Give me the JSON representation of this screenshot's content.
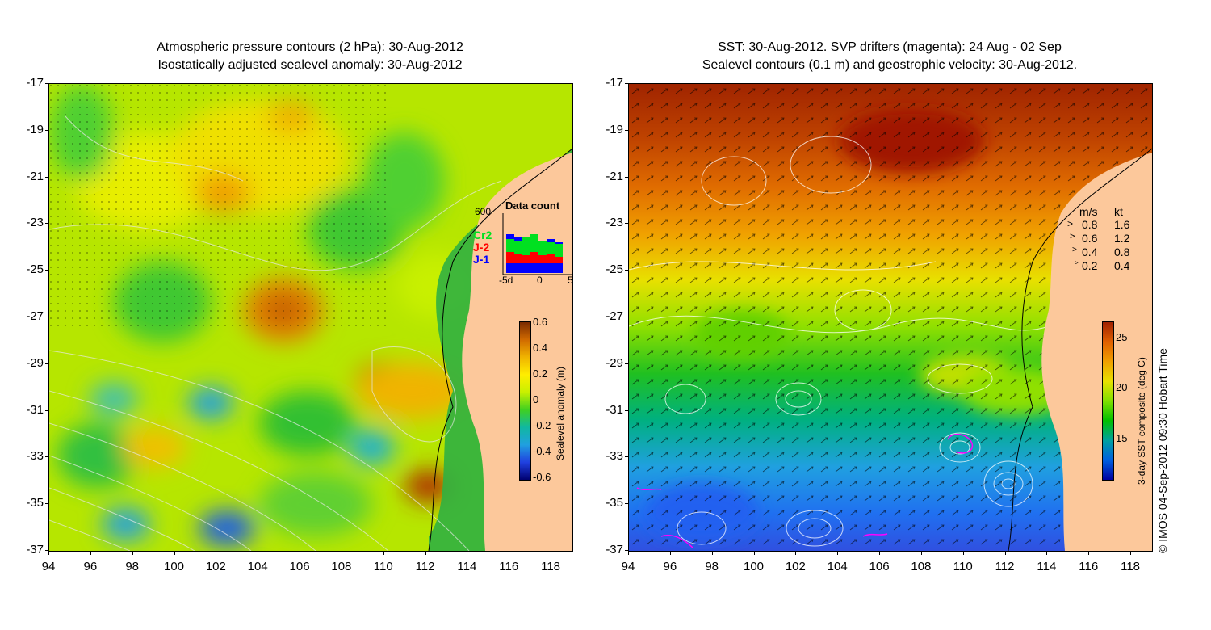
{
  "left_panel": {
    "title_line1": "Atmospheric pressure contours (2 hPa): 30-Aug-2012",
    "title_line2": "Isostatically adjusted sealevel anomaly: 30-Aug-2012",
    "colorbar": {
      "label": "Sealevel anomaly (m)",
      "ticks": [
        "0.6",
        "0.4",
        "0.2",
        "0",
        "-0.2",
        "-0.4",
        "-0.6"
      ],
      "colors": [
        "#7a2a00",
        "#d06a00",
        "#f0b400",
        "#ffee00",
        "#c8f000",
        "#40d020",
        "#10b8a0",
        "#20a0e0",
        "#2040e0",
        "#000070"
      ]
    },
    "data_count": {
      "title": "Data count",
      "max_label": "600",
      "satellites": [
        {
          "name": "Cr2",
          "color": "#00e020"
        },
        {
          "name": "J-2",
          "color": "#ff0000"
        },
        {
          "name": "J-1",
          "color": "#0000ff"
        }
      ],
      "x_ticks": [
        "-5d",
        "0",
        "5"
      ]
    }
  },
  "right_panel": {
    "title_line1": "SST: 30-Aug-2012. SVP drifters (magenta): 24 Aug - 02 Sep",
    "title_line2": "Sealevel contours (0.1 m) and geostrophic velocity: 30-Aug-2012.",
    "colorbar": {
      "label": "3-day SST composite (deg C)",
      "ticks": [
        "25",
        "20",
        "15"
      ],
      "colors": [
        "#a02000",
        "#e06000",
        "#f0a000",
        "#e8e000",
        "#80e000",
        "#00c000",
        "#00a0a0",
        "#0060e0",
        "#0000a0"
      ]
    },
    "velocity_legend": {
      "header_ms": "m/s",
      "header_kt": "kt",
      "rows": [
        {
          "ms": "0.8",
          "kt": "1.6"
        },
        {
          "ms": "0.6",
          "kt": "1.2"
        },
        {
          "ms": "0.4",
          "kt": "0.8"
        },
        {
          "ms": "0.2",
          "kt": "0.4"
        }
      ]
    }
  },
  "axes": {
    "lat_ticks": [
      "-17",
      "-19",
      "-21",
      "-23",
      "-25",
      "-27",
      "-29",
      "-31",
      "-33",
      "-35",
      "-37"
    ],
    "lon_ticks": [
      "94",
      "96",
      "98",
      "100",
      "102",
      "104",
      "106",
      "108",
      "110",
      "112",
      "114",
      "116",
      "118"
    ]
  },
  "credit": "© IMOS 04-Sep-2012 09:30 Hobart Time",
  "land_color": "#fcc89b"
}
